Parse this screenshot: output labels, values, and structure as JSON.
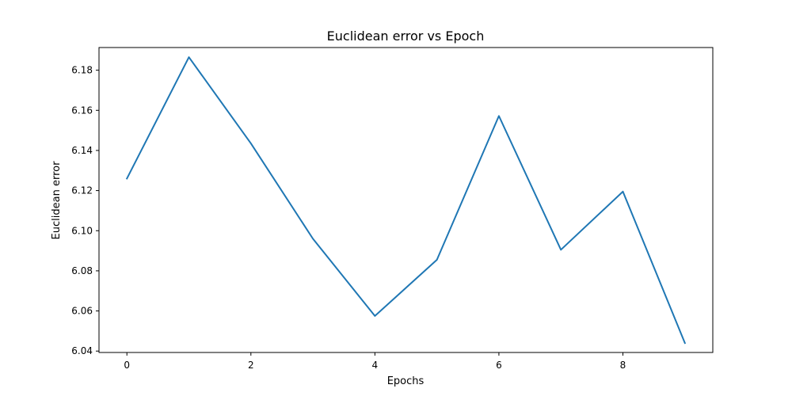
{
  "chart_data": {
    "type": "line",
    "title": "Euclidean error vs Epoch",
    "xlabel": "Epochs",
    "ylabel": "Euclidean error",
    "xlim": [
      -0.45,
      9.45
    ],
    "ylim": [
      6.0393,
      6.1913
    ],
    "xticks": [
      0,
      2,
      4,
      6,
      8
    ],
    "yticks": [
      6.04,
      6.06,
      6.08,
      6.1,
      6.12,
      6.14,
      6.16,
      6.18
    ],
    "ytick_labels": [
      "6.04",
      "6.06",
      "6.08",
      "6.10",
      "6.12",
      "6.14",
      "6.16",
      "6.18"
    ],
    "grid": false,
    "line_color": "#1f77b4",
    "series": [
      {
        "x": [
          0,
          1,
          2,
          3,
          4,
          5,
          6,
          7,
          8,
          9
        ],
        "values": [
          6.126,
          6.1865,
          6.1435,
          6.096,
          6.0575,
          6.0855,
          6.1572,
          6.0905,
          6.1195,
          6.044
        ]
      }
    ]
  }
}
